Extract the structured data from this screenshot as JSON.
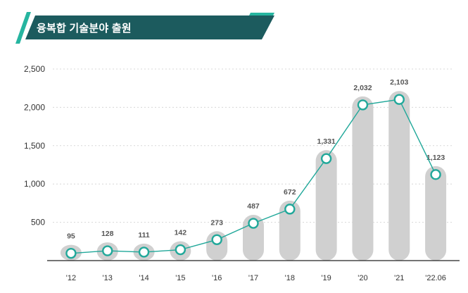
{
  "header": {
    "title": "융복합 기술분야 출원"
  },
  "colors": {
    "banner": "#1c5b5e",
    "accent": "#26b5a0",
    "bar": "#d0d0d0",
    "line": "#21a89a"
  },
  "chart_data": {
    "type": "bar",
    "title": "융복합 기술분야 출원",
    "categories": [
      "'12",
      "'13",
      "'14",
      "'15",
      "'16",
      "'17",
      "'18",
      "'19",
      "'20",
      "'21",
      "'22.06"
    ],
    "values": [
      95,
      128,
      111,
      142,
      273,
      487,
      672,
      1331,
      2032,
      2103,
      1123
    ],
    "data_labels": [
      "95",
      "128",
      "111",
      "142",
      "273",
      "487",
      "672",
      "1,331",
      "2,032",
      "2,103",
      "1,123"
    ],
    "overlay": "line-with-markers",
    "yticks": [
      500,
      1000,
      1500,
      2000,
      2500
    ],
    "ytick_labels": [
      "500",
      "1,000",
      "1,500",
      "2,000",
      "2,500"
    ],
    "ylim": [
      0,
      2500
    ],
    "xlabel": "",
    "ylabel": "",
    "grid": true
  }
}
